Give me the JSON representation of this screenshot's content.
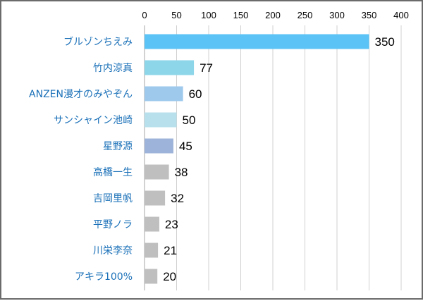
{
  "chart_data": {
    "type": "bar",
    "orientation": "horizontal",
    "title": "",
    "xlabel": "",
    "ylabel": "",
    "xlim": [
      0,
      400
    ],
    "x_ticks": [
      0,
      50,
      100,
      150,
      200,
      250,
      300,
      350,
      400
    ],
    "x_axis_position": "top",
    "grid": true,
    "legend": "none",
    "categories": [
      "ブルゾンちえみ",
      "竹内涼真",
      "ANZEN漫才のみやぞん",
      "サンシャイン池崎",
      "星野源",
      "高橋一生",
      "吉岡里帆",
      "平野ノラ",
      "川栄李奈",
      "アキラ100%"
    ],
    "values": [
      350,
      77,
      60,
      50,
      45,
      38,
      32,
      23,
      21,
      20
    ],
    "bar_colors": [
      "#5bc3f5",
      "#8dd5e8",
      "#9ec9ec",
      "#b8e0ec",
      "#9eb3d9",
      "#bfbfbf",
      "#bfbfbf",
      "#bfbfbf",
      "#bfbfbf",
      "#bfbfbf"
    ],
    "category_label_color": "#1a70b8",
    "grid_color": "#d0d0d0"
  }
}
